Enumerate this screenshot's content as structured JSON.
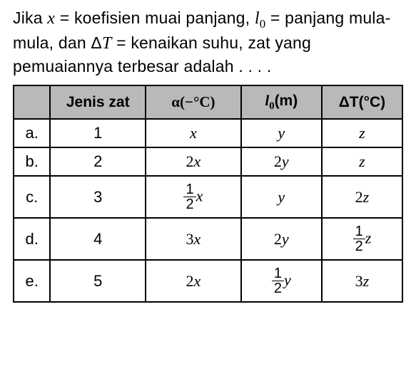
{
  "question": {
    "line1_a": "Jika ",
    "var_x": "x",
    "line1_b": " = koefisien muai panjang, ",
    "var_l0": "l",
    "var_l0_sub": "0",
    "line1_c": " = panjang mula-mula, dan Δ",
    "var_T": "T",
    "line1_d": " = kenaikan suhu, zat yang pemuaiannya terbesar adalah . . . ."
  },
  "table": {
    "headers": {
      "h1": "",
      "h2": "Jenis zat",
      "h3_a": "α(−°C)",
      "h4_a": "l",
      "h4_sub": "0",
      "h4_b": "(m)",
      "h5": "ΔT(°C)"
    },
    "column_widths": [
      "50px",
      "130px",
      "130px",
      "110px",
      "110px"
    ],
    "header_bg": "#b9b9b9",
    "border_color": "#000000",
    "font_family": "Arial",
    "math_font": "Times New Roman",
    "rows": [
      {
        "opt": "a.",
        "jenis": "1",
        "alpha": {
          "type": "plain",
          "text": "x"
        },
        "l0": {
          "type": "plain",
          "text": "y"
        },
        "dT": {
          "type": "plain",
          "text": "z"
        }
      },
      {
        "opt": "b.",
        "jenis": "2",
        "alpha": {
          "type": "plain",
          "text": "2x"
        },
        "l0": {
          "type": "plain",
          "text": "2y"
        },
        "dT": {
          "type": "plain",
          "text": "z"
        }
      },
      {
        "opt": "c.",
        "jenis": "3",
        "alpha": {
          "type": "frac",
          "num": "1",
          "den": "2",
          "suffix": "x"
        },
        "l0": {
          "type": "plain",
          "text": "y"
        },
        "dT": {
          "type": "plain",
          "text": "2z"
        }
      },
      {
        "opt": "d.",
        "jenis": "4",
        "alpha": {
          "type": "plain",
          "text": "3x"
        },
        "l0": {
          "type": "plain",
          "text": "2y"
        },
        "dT": {
          "type": "frac",
          "num": "1",
          "den": "2",
          "suffix": "z"
        }
      },
      {
        "opt": "e.",
        "jenis": "5",
        "alpha": {
          "type": "plain",
          "text": "2x"
        },
        "l0": {
          "type": "frac",
          "num": "1",
          "den": "2",
          "suffix": "y"
        },
        "dT": {
          "type": "plain",
          "text": "3z"
        }
      }
    ]
  }
}
